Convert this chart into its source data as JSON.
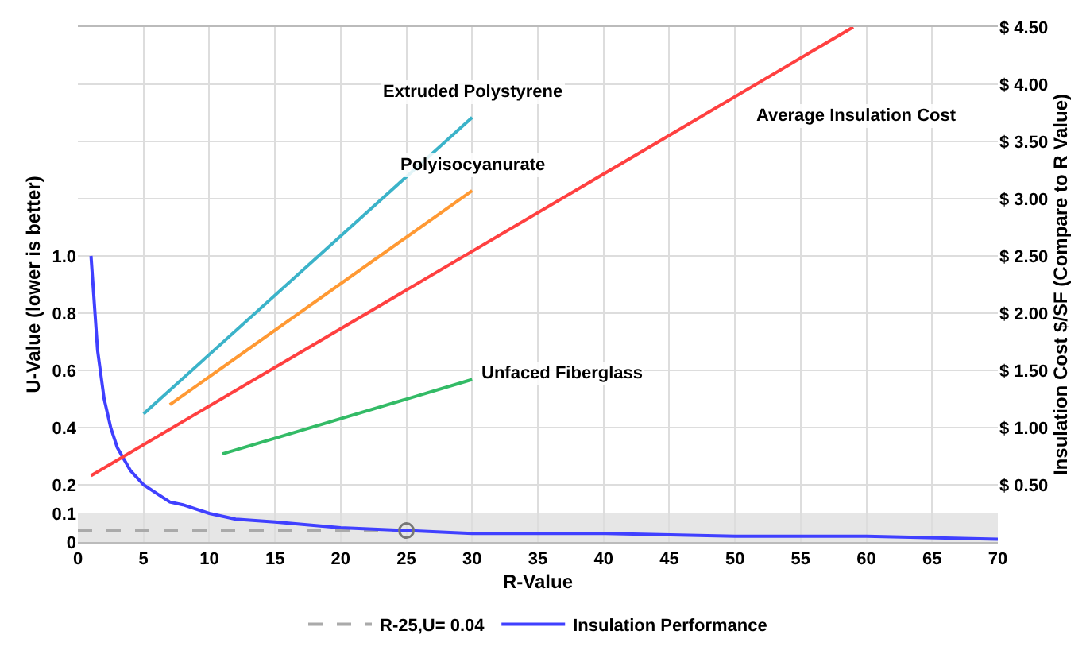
{
  "chart_data": {
    "type": "line",
    "xlabel": "R-Value",
    "ylabel": "U-Value (lower is better)",
    "y2label": "Insulation Cost $/SF (Compare to R Value)",
    "xlim": [
      0,
      70
    ],
    "xticks": [
      0,
      5,
      10,
      15,
      20,
      25,
      30,
      35,
      40,
      45,
      50,
      55,
      60,
      65,
      70
    ],
    "ylim": [
      0,
      1.8
    ],
    "yticks": [
      0,
      0.1,
      0.2,
      0.4,
      0.6,
      0.8,
      {
        "value": 1,
        "label": "1.0"
      }
    ],
    "y2lim": [
      0,
      4.5
    ],
    "y2ticks": [
      {
        "value": 0.5,
        "label": "$ 0.50"
      },
      {
        "value": 1,
        "label": "$ 1.00"
      },
      {
        "value": 1.5,
        "label": "$ 1.50"
      },
      {
        "value": 2,
        "label": "$ 2.00"
      },
      {
        "value": 2.5,
        "label": "$ 2.50"
      },
      {
        "value": 3,
        "label": "$ 3.00"
      },
      {
        "value": 3.5,
        "label": "$ 3.50"
      },
      {
        "value": 4,
        "label": "$ 4.00"
      },
      {
        "value": 4.5,
        "label": "$ 4.50"
      }
    ],
    "grid": true,
    "legend": "bottom",
    "bands": [
      {
        "axis": "y",
        "from": 0,
        "to": 0.1,
        "color": "#e6e6e6"
      }
    ],
    "series": [
      {
        "name": "R-25,U= 0.04",
        "color": "#aaaaaa",
        "line_style": "dashed",
        "x": [
          0,
          25
        ],
        "values": [
          0.04,
          0.04
        ]
      },
      {
        "name": "Insulation Performance",
        "color": "#4040ff",
        "x": [
          1,
          1.5,
          2,
          2.5,
          3,
          4,
          5,
          6,
          7,
          8,
          10,
          12,
          15,
          20,
          25,
          30,
          40,
          50,
          60,
          70
        ],
        "values": [
          1.0,
          0.67,
          0.5,
          0.4,
          0.33,
          0.25,
          0.2,
          0.17,
          0.14,
          0.13,
          0.1,
          0.08,
          0.07,
          0.05,
          0.04,
          0.03,
          0.03,
          0.02,
          0.02,
          0.01
        ]
      },
      {
        "type": "scatter",
        "color": "#777777",
        "x": [
          25
        ],
        "values": [
          0.04
        ]
      },
      {
        "name": "Extruded Polystyrene",
        "color": "#3bb3c9",
        "axis": "y2",
        "x": [
          5,
          30
        ],
        "values": [
          1.12,
          3.71
        ]
      },
      {
        "name": "Polyisocyanurate",
        "color": "#ff9933",
        "axis": "y2",
        "x": [
          7,
          30
        ],
        "values": [
          1.2,
          3.07
        ]
      },
      {
        "name": "Average Insulation Cost",
        "color": "#ff4040",
        "axis": "y2",
        "x": [
          1,
          59
        ],
        "values": [
          0.58,
          4.5
        ]
      },
      {
        "name": "Unfaced Fiberglass",
        "color": "#33bb66",
        "axis": "y2",
        "x": [
          11,
          30
        ],
        "values": [
          0.77,
          1.42
        ]
      }
    ]
  }
}
